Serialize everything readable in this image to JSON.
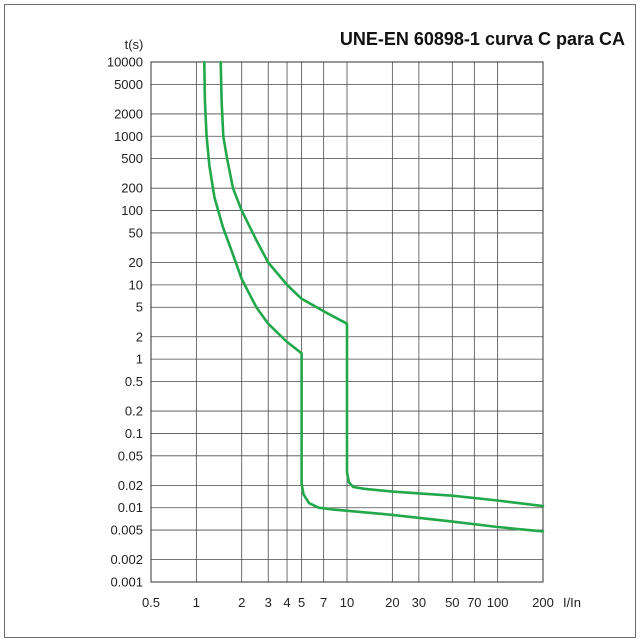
{
  "chart_data": {
    "type": "line",
    "title": "UNE-EN 60898-1 curva C para CA",
    "xlabel": "I/In",
    "ylabel": "t(s)",
    "x_scale": "log",
    "y_scale": "log",
    "xlim": [
      0.5,
      200
    ],
    "ylim": [
      0.001,
      10000
    ],
    "grid": true,
    "x_ticks": [
      0.5,
      1,
      2,
      3,
      4,
      5,
      7,
      10,
      20,
      30,
      50,
      70,
      100,
      200
    ],
    "x_tick_labels": [
      "0.5",
      "1",
      "2",
      "3",
      "4",
      "5",
      "7",
      "10",
      "20",
      "30",
      "50",
      "70",
      "100",
      "200"
    ],
    "y_ticks": [
      0.001,
      0.002,
      0.005,
      0.01,
      0.02,
      0.05,
      0.1,
      0.2,
      0.5,
      1,
      2,
      5,
      10,
      20,
      50,
      100,
      200,
      500,
      1000,
      2000,
      5000,
      10000
    ],
    "y_tick_labels": [
      "0.001",
      "0.002",
      "0.005",
      "0.01",
      "0.02",
      "0.05",
      "0.1",
      "0.2",
      "0.5",
      "1",
      "2",
      "5",
      "10",
      "20",
      "50",
      "100",
      "200",
      "500",
      "1000",
      "2000",
      "5000",
      "10000"
    ],
    "line_color": "#22a84a",
    "series": [
      {
        "points": [
          [
            1.13,
            10000
          ],
          [
            1.14,
            3000
          ],
          [
            1.17,
            1000
          ],
          [
            1.22,
            400
          ],
          [
            1.32,
            150
          ],
          [
            1.5,
            60
          ],
          [
            1.7,
            30
          ],
          [
            2.0,
            12
          ],
          [
            2.5,
            5
          ],
          [
            3.0,
            3
          ],
          [
            4.0,
            1.7
          ],
          [
            5.0,
            1.2
          ],
          [
            5.0,
            0.021
          ],
          [
            5.15,
            0.015
          ],
          [
            5.6,
            0.0115
          ],
          [
            6.5,
            0.01
          ],
          [
            8.0,
            0.0095
          ],
          [
            20,
            0.008
          ],
          [
            50,
            0.0065
          ],
          [
            100,
            0.0055
          ],
          [
            200,
            0.0048
          ]
        ]
      },
      {
        "points": [
          [
            1.45,
            10000
          ],
          [
            1.47,
            3000
          ],
          [
            1.51,
            1000
          ],
          [
            1.6,
            500
          ],
          [
            1.75,
            200
          ],
          [
            2.0,
            100
          ],
          [
            2.5,
            40
          ],
          [
            3.0,
            20
          ],
          [
            4.0,
            10
          ],
          [
            5.0,
            6.5
          ],
          [
            7.0,
            4.4
          ],
          [
            10.0,
            3.0
          ],
          [
            10.0,
            0.03
          ],
          [
            10.3,
            0.022
          ],
          [
            11.0,
            0.019
          ],
          [
            13.0,
            0.018
          ],
          [
            20,
            0.0165
          ],
          [
            50,
            0.0145
          ],
          [
            100,
            0.0125
          ],
          [
            200,
            0.0105
          ]
        ]
      }
    ]
  }
}
